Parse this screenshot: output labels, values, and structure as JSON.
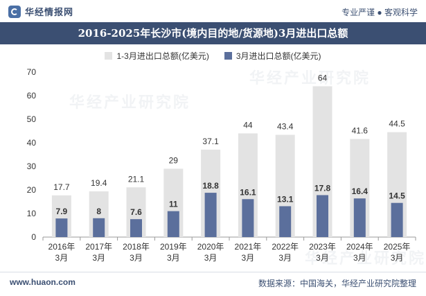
{
  "header": {
    "brand": "华经情报网",
    "tagline": "专业严谨 ● 客观科学"
  },
  "footer": {
    "website": "www.huaon.com",
    "source": "数据来源：中国海关，华经产业研究院整理"
  },
  "watermark": "华经产业研究院",
  "colors": {
    "primary": "#3b4f72",
    "series1": "#e3e3e3",
    "series2": "#5b6f9c"
  },
  "chart_data": {
    "type": "bar",
    "title": "2016-2025年长沙市(境内目的地/货源地)3月进出口总额",
    "categories": [
      "2016年\n3月",
      "2017年\n3月",
      "2018年\n3月",
      "2019年\n3月",
      "2020年\n3月",
      "2021年\n3月",
      "2022年\n3月",
      "2023年\n3月",
      "2024年\n3月",
      "2025年\n3月"
    ],
    "series": [
      {
        "name": "1-3月进出口总额(亿美元)",
        "values": [
          17.7,
          19.4,
          21.1,
          29,
          37.1,
          44,
          43.4,
          64,
          41.6,
          44.5
        ]
      },
      {
        "name": "3月进出口总额(亿美元)",
        "values": [
          7.9,
          8,
          7.6,
          11,
          18.8,
          16.1,
          13.1,
          17.8,
          16.4,
          14.5
        ]
      }
    ],
    "ylim": [
      0,
      70
    ],
    "yticks": [
      0,
      10,
      20,
      30,
      40,
      50,
      60,
      70
    ],
    "legend_position": "top-center",
    "grid": false
  }
}
